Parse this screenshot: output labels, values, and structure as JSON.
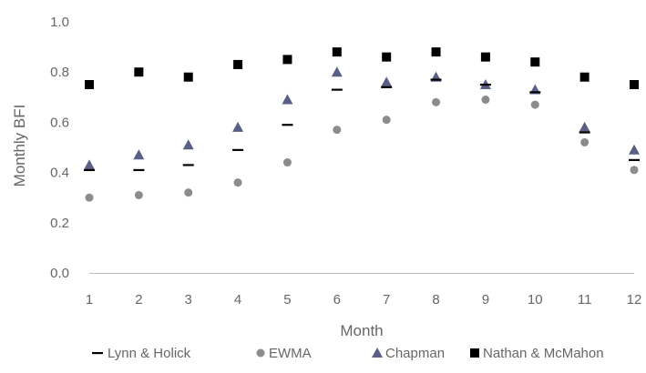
{
  "chart_data": {
    "type": "scatter",
    "x": [
      1,
      2,
      3,
      4,
      5,
      6,
      7,
      8,
      9,
      10,
      11,
      12
    ],
    "xticks": [
      "1",
      "2",
      "3",
      "4",
      "5",
      "6",
      "7",
      "8",
      "9",
      "10",
      "11",
      "12"
    ],
    "xlim": [
      1,
      12
    ],
    "ylim": [
      0.0,
      1.0
    ],
    "yticks": [
      "0.0",
      "0.2",
      "0.4",
      "0.6",
      "0.8",
      "1.0"
    ],
    "xlabel": "Month",
    "ylabel": "Monthly BFI",
    "grid": false,
    "legend_position": "bottom",
    "series": [
      {
        "name": "Lynn & Holick",
        "marker": "dash",
        "color": "#000000",
        "values": [
          0.41,
          0.41,
          0.43,
          0.49,
          0.59,
          0.73,
          0.74,
          0.77,
          0.75,
          0.72,
          0.56,
          0.45
        ]
      },
      {
        "name": "EWMA",
        "marker": "circle",
        "color": "#8c8c8c",
        "values": [
          0.3,
          0.31,
          0.32,
          0.36,
          0.44,
          0.57,
          0.61,
          0.68,
          0.69,
          0.67,
          0.52,
          0.41
        ]
      },
      {
        "name": "Chapman",
        "marker": "triangle",
        "color": "#5a5f86",
        "values": [
          0.43,
          0.47,
          0.51,
          0.58,
          0.69,
          0.8,
          0.76,
          0.78,
          0.75,
          0.73,
          0.58,
          0.49
        ]
      },
      {
        "name": "Nathan & McMahon",
        "marker": "square",
        "color": "#000000",
        "values": [
          0.75,
          0.8,
          0.78,
          0.83,
          0.85,
          0.88,
          0.86,
          0.88,
          0.86,
          0.84,
          0.78,
          0.75
        ]
      }
    ]
  }
}
